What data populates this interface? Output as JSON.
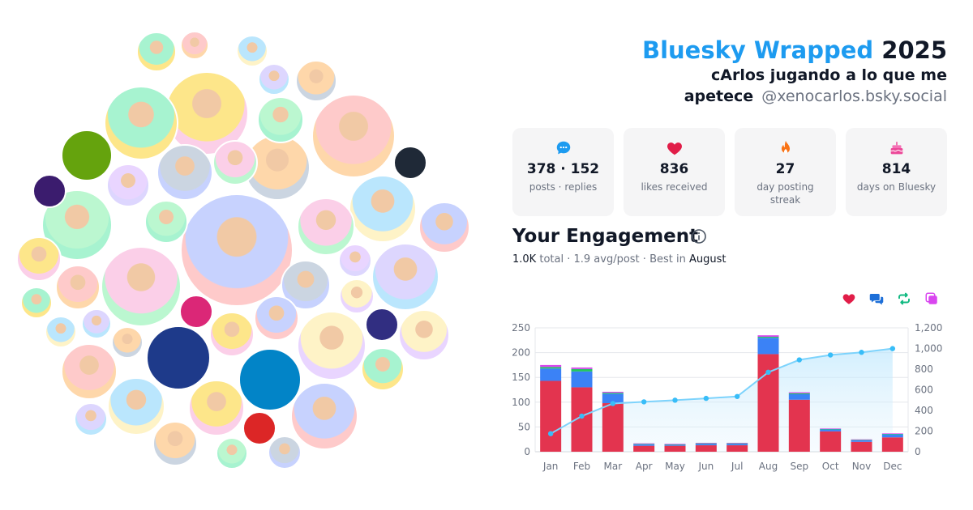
{
  "header": {
    "title_brand": "Bluesky Wrapped",
    "title_year": "2025",
    "display_name": "cArlos jugando a lo que me",
    "display_name_line2": "apetece",
    "handle": "@xenocarlos.bsky.social"
  },
  "stats": [
    {
      "icon": "speech-bubble-icon",
      "value": "378 · 152",
      "label": "posts · replies",
      "color": "#1d9bf0"
    },
    {
      "icon": "heart-icon",
      "value": "836",
      "label": "likes received",
      "color": "#e11d48"
    },
    {
      "icon": "fire-icon",
      "value": "27",
      "label": "day posting streak",
      "color": "#f97316"
    },
    {
      "icon": "cake-icon",
      "value": "814",
      "label": "days on Bluesky",
      "color": "#ec4899"
    }
  ],
  "engagement": {
    "title": "Your Engagement",
    "total_value": "1.0K",
    "total_label": "total",
    "avg": "1.9 avg/post",
    "best_prefix": "Best in",
    "best_month": "August"
  },
  "legend": [
    {
      "icon": "heart-icon",
      "color": "#e11d48"
    },
    {
      "icon": "replies-icon",
      "color": "#1d6fd8"
    },
    {
      "icon": "repost-icon",
      "color": "#10b981"
    },
    {
      "icon": "quote-icon",
      "color": "#d946ef"
    }
  ],
  "chart_data": {
    "type": "bar",
    "categories": [
      "Jan",
      "Feb",
      "Mar",
      "Apr",
      "May",
      "Jun",
      "Jul",
      "Aug",
      "Sep",
      "Oct",
      "Nov",
      "Dec"
    ],
    "series": [
      {
        "color": "#e3344f",
        "values": [
          143,
          130,
          98,
          12,
          12,
          13,
          13,
          197,
          105,
          41,
          20,
          29
        ]
      },
      {
        "color": "#3b82f6",
        "values": [
          25,
          32,
          19,
          3,
          2,
          3,
          3,
          33,
          11,
          4,
          3,
          6
        ]
      },
      {
        "color": "#22c55e",
        "values": [
          3,
          5,
          2,
          1,
          1,
          1,
          1,
          2,
          2,
          1,
          1,
          1
        ]
      },
      {
        "color": "#d946ef",
        "values": [
          4,
          3,
          2,
          1,
          1,
          1,
          1,
          3,
          2,
          1,
          1,
          1
        ]
      }
    ],
    "cumulative": [
      175,
      345,
      467,
      483,
      499,
      517,
      535,
      770,
      890,
      937,
      963,
      999
    ],
    "ylim": [
      0,
      250
    ],
    "y2lim": [
      0,
      1200
    ],
    "yticks": [
      0,
      50,
      100,
      150,
      200,
      250
    ],
    "y2ticks": [
      "0",
      "200",
      "400",
      "600",
      "800",
      "1,000",
      "1,200"
    ],
    "grid": true
  }
}
